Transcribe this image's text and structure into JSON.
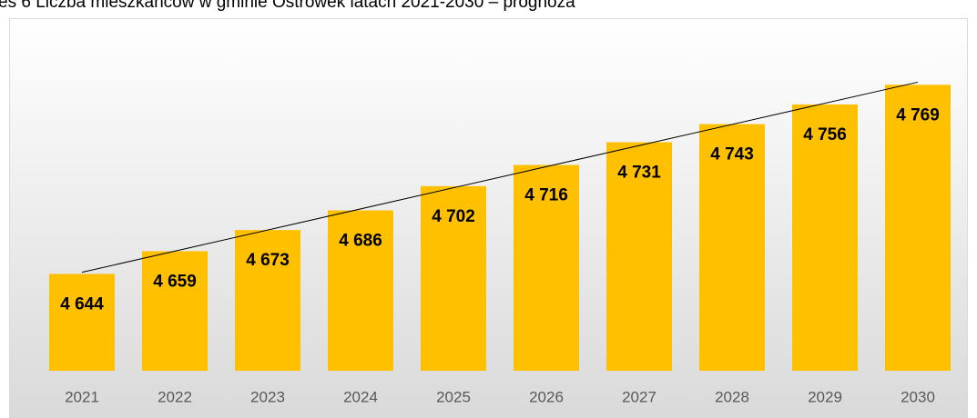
{
  "chart_data": {
    "type": "bar",
    "title": "es 6 Liczba mieszkańców w gminie Ostrówek latach 2021-2030 – prognoza",
    "categories": [
      "2021",
      "2022",
      "2023",
      "2024",
      "2025",
      "2026",
      "2027",
      "2028",
      "2029",
      "2030"
    ],
    "values": [
      4644,
      4659,
      4673,
      4686,
      4702,
      4716,
      4731,
      4743,
      4756,
      4769
    ],
    "value_labels": [
      "4 644",
      "4 659",
      "4 673",
      "4 686",
      "4 702",
      "4 716",
      "4 731",
      "4 743",
      "4 756",
      "4 769"
    ],
    "color": "#ffc000",
    "ylim": [
      4580,
      4807
    ],
    "trendline": true
  }
}
